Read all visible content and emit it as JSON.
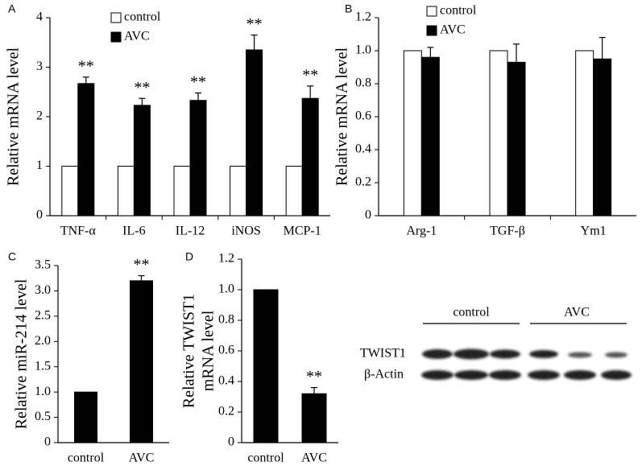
{
  "chart_data": [
    {
      "panel": "A",
      "type": "bar",
      "ylabel": "Relative mRNA level",
      "categories": [
        "TNF-α",
        "IL-6",
        "IL-12",
        "iNOS",
        "MCP-1"
      ],
      "series": [
        {
          "name": "control",
          "color": "#ffffff",
          "values": [
            1,
            1,
            1,
            1,
            1
          ]
        },
        {
          "name": "AVC",
          "color": "#000000",
          "values": [
            2.67,
            2.23,
            2.33,
            3.35,
            2.37
          ],
          "errors": [
            0.13,
            0.14,
            0.15,
            0.3,
            0.25
          ],
          "significance": [
            "**",
            "**",
            "**",
            "**",
            "**"
          ]
        }
      ],
      "ylim": [
        0,
        4
      ],
      "yticks": [
        0,
        1,
        2,
        3,
        4
      ]
    },
    {
      "panel": "B",
      "type": "bar",
      "ylabel": "Relative mRNA level",
      "categories": [
        "Arg-1",
        "TGF-β",
        "Ym1"
      ],
      "series": [
        {
          "name": "control",
          "color": "#ffffff",
          "values": [
            1,
            1,
            1
          ]
        },
        {
          "name": "AVC",
          "color": "#000000",
          "values": [
            0.96,
            0.93,
            0.95
          ],
          "errors": [
            0.06,
            0.11,
            0.13
          ]
        }
      ],
      "ylim": [
        0,
        1.2
      ],
      "yticks": [
        0,
        0.2,
        0.4,
        0.6,
        0.8,
        {
          "value": 1,
          "label": "1.0"
        },
        1.2
      ]
    },
    {
      "panel": "C",
      "type": "bar",
      "ylabel": "Relative miR-214 level",
      "categories": [
        "control",
        "AVC"
      ],
      "values": [
        1,
        3.2
      ],
      "color": "#000000",
      "errors": [
        null,
        0.1
      ],
      "significance": [
        null,
        "**"
      ],
      "ylim": [
        0,
        3.5
      ],
      "yticks": [
        0,
        0.5,
        {
          "value": 1,
          "label": "1.0"
        },
        1.5,
        {
          "value": 2,
          "label": "2.0"
        },
        2.5,
        {
          "value": 3,
          "label": "3.0"
        },
        3.5
      ]
    },
    {
      "panel": "D",
      "type": "bar",
      "ylabel": [
        "Relative TWIST1",
        "mRNA level"
      ],
      "categories": [
        "control",
        "AVC"
      ],
      "values": [
        1,
        0.32
      ],
      "color": "#000000",
      "errors": [
        null,
        0.04
      ],
      "significance": [
        null,
        "**"
      ],
      "ylim": [
        0,
        1.2
      ],
      "yticks": [
        0,
        0.2,
        0.4,
        0.6,
        0.8,
        {
          "value": 1,
          "label": "1.0"
        },
        1.2
      ]
    }
  ],
  "blot": {
    "groups": [
      "control",
      "AVC"
    ],
    "rows": [
      "TWIST1",
      "β-Actin"
    ]
  }
}
